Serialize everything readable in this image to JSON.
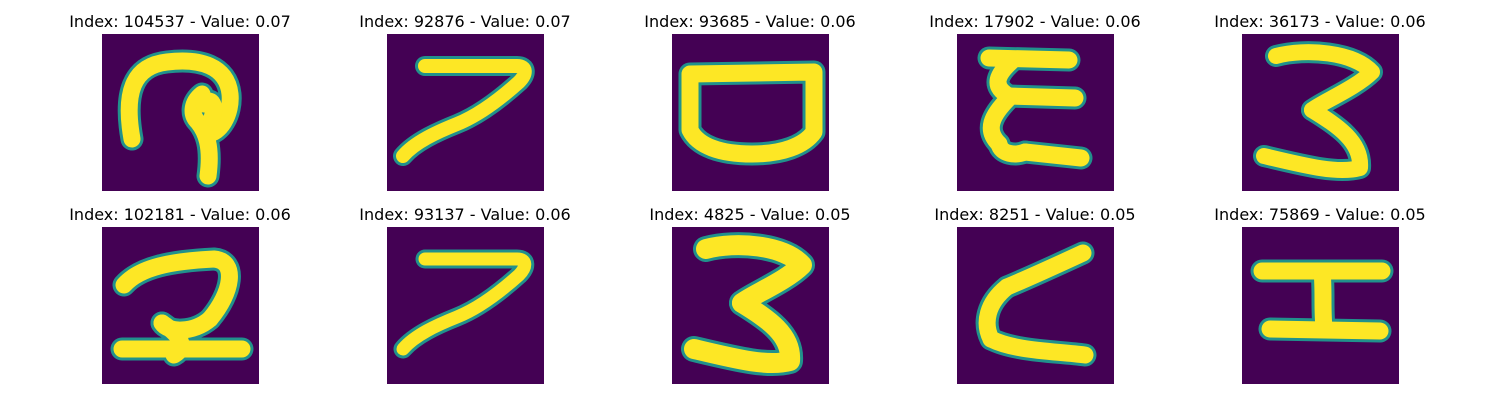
{
  "colors": {
    "background": "#440154",
    "mid": "#21918c",
    "stroke": "#fde725",
    "text": "#000000"
  },
  "panels": [
    {
      "index": 104537,
      "value": "0.07",
      "title": "Index: 104537 - Value: 0.07",
      "glyph": "9"
    },
    {
      "index": 92876,
      "value": "0.07",
      "title": "Index: 92876 - Value: 0.07",
      "glyph": "7"
    },
    {
      "index": 93685,
      "value": "0.06",
      "title": "Index: 93685 - Value: 0.06",
      "glyph": "bowl"
    },
    {
      "index": 17902,
      "value": "0.06",
      "title": "Index: 17902 - Value: 0.06",
      "glyph": "E"
    },
    {
      "index": 36173,
      "value": "0.06",
      "title": "Index: 36173 - Value: 0.06",
      "glyph": "3"
    },
    {
      "index": 102181,
      "value": "0.06",
      "title": "Index: 102181 - Value: 0.06",
      "glyph": "2"
    },
    {
      "index": 93137,
      "value": "0.06",
      "title": "Index: 93137 - Value: 0.06",
      "glyph": "7"
    },
    {
      "index": 4825,
      "value": "0.05",
      "title": "Index: 4825 - Value: 0.05",
      "glyph": "3"
    },
    {
      "index": 8251,
      "value": "0.05",
      "title": "Index: 8251 - Value: 0.05",
      "glyph": "zeta"
    },
    {
      "index": 75869,
      "value": "0.05",
      "title": "Index: 75869 - Value: 0.05",
      "glyph": "I"
    }
  ]
}
